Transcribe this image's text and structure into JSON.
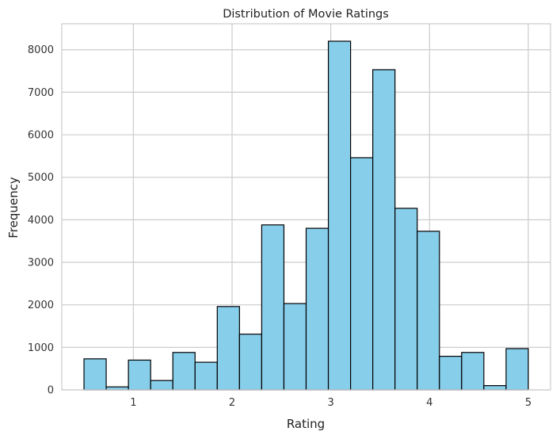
{
  "chart_data": {
    "type": "bar",
    "title": "Distribution of Movie Ratings",
    "xlabel": "Rating",
    "ylabel": "Frequency",
    "bin_edges": [
      0.5,
      0.725,
      0.95,
      1.175,
      1.4,
      1.625,
      1.85,
      2.075,
      2.3,
      2.525,
      2.75,
      2.975,
      3.2,
      3.425,
      3.65,
      3.875,
      4.1,
      4.325,
      4.55,
      4.775,
      5.0
    ],
    "values": [
      730,
      70,
      700,
      220,
      880,
      650,
      1960,
      1310,
      3880,
      2030,
      3800,
      8200,
      5460,
      7530,
      4270,
      3730,
      790,
      880,
      100,
      970
    ],
    "xlim": [
      0.275,
      5.225
    ],
    "ylim": [
      0,
      8610
    ],
    "xticks": [
      1,
      2,
      3,
      4,
      5
    ],
    "yticks": [
      0,
      1000,
      2000,
      3000,
      4000,
      5000,
      6000,
      7000,
      8000
    ],
    "grid": true,
    "bar_color": "#87CEEB",
    "edge_color": "#000000",
    "grid_color": "#cccccc",
    "spine_color": "#cccccc"
  }
}
